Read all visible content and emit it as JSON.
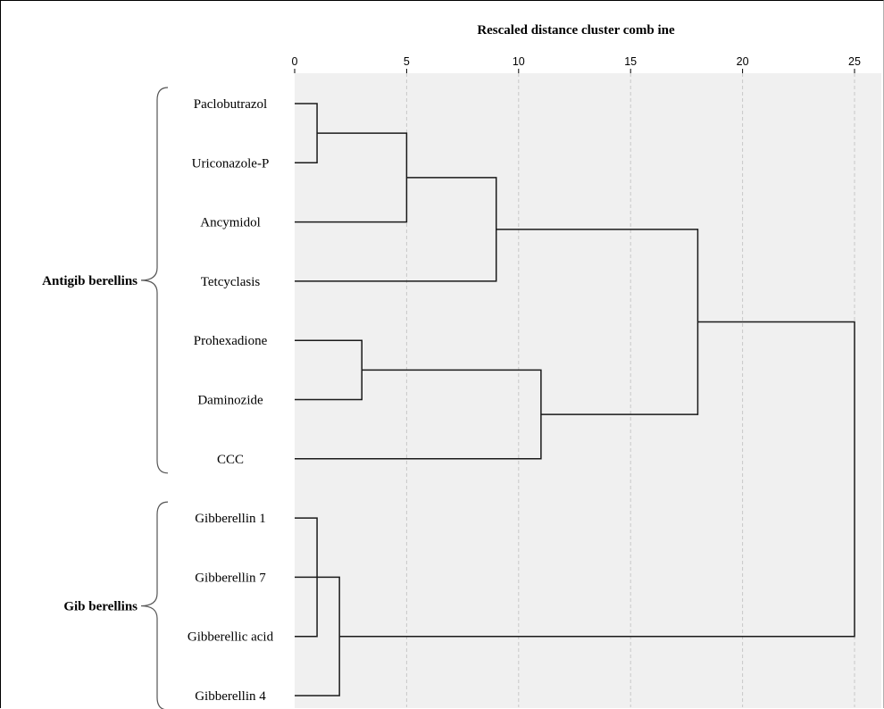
{
  "chart_data": {
    "type": "dendrogram",
    "title": "Rescaled distance cluster comb ine",
    "xlim": [
      0,
      25
    ],
    "ticks": [
      0,
      5,
      10,
      15,
      20,
      25
    ],
    "grid": "vertical dashed",
    "leaves": [
      "Paclobutrazol",
      "Uriconazole-P",
      "Ancymidol",
      "Tetcyclasis",
      "Prohexadione",
      "Daminozide",
      "CCC",
      "Gibberellin 1",
      "Gibberellin 7",
      "Gibberellic acid",
      "Gibberellin 4"
    ],
    "merges": [
      {
        "id": "m1",
        "children": [
          "leaf:0",
          "leaf:1"
        ],
        "height": 1
      },
      {
        "id": "m2",
        "children": [
          "m1",
          "leaf:2"
        ],
        "height": 5
      },
      {
        "id": "m3",
        "children": [
          "m2",
          "leaf:3"
        ],
        "height": 9
      },
      {
        "id": "m4",
        "children": [
          "leaf:4",
          "leaf:5"
        ],
        "height": 3
      },
      {
        "id": "m5",
        "children": [
          "m4",
          "leaf:6"
        ],
        "height": 11
      },
      {
        "id": "m6",
        "children": [
          "m3",
          "m5"
        ],
        "height": 18
      },
      {
        "id": "m7",
        "children": [
          "leaf:7",
          "leaf:9"
        ],
        "height": 1
      },
      {
        "id": "m8",
        "children": [
          "m7",
          "leaf:8"
        ],
        "height": 1
      },
      {
        "id": "m9",
        "children": [
          "m8",
          "leaf:10"
        ],
        "height": 2
      },
      {
        "id": "m10",
        "children": [
          "m6",
          "m9"
        ],
        "height": 25
      }
    ],
    "groups": [
      {
        "label": "Antigib berellins",
        "from": 0,
        "to": 6
      },
      {
        "label": "Gib berellins",
        "from": 7,
        "to": 10
      }
    ]
  }
}
